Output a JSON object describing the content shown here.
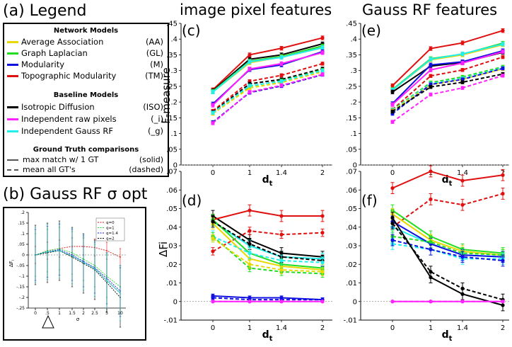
{
  "labels": {
    "legend_title": "(a) Legend",
    "inset_title": "(b) Gauss RF σ opt",
    "col1_title": "image pixel features",
    "col2_title": "Gauss RF features"
  },
  "legend": {
    "network_header": "Network Models",
    "network": [
      {
        "name": "Average Association",
        "abbr": "(AA)",
        "color": "#e8d800"
      },
      {
        "name": "Graph Laplacian",
        "abbr": "(GL)",
        "color": "#22dd22"
      },
      {
        "name": "Modularity",
        "abbr": "(M)",
        "color": "#1010e0"
      },
      {
        "name": "Topographic Modularity",
        "abbr": "(TM)",
        "color": "#e01010"
      }
    ],
    "baseline_header": "Baseline Models",
    "baseline": [
      {
        "name": "Isotropic Diffusion",
        "abbr": "(ISO)",
        "color": "#000000"
      },
      {
        "name": "Independent raw pixels",
        "abbr": "(_i)",
        "color": "#ff22ff"
      },
      {
        "name": "Independent Gauss RF",
        "abbr": "(_g)",
        "color": "#22eeee"
      }
    ],
    "gt_header": "Ground Truth comparisons",
    "gt": [
      {
        "name": "max match w/ 1 GT",
        "abbr": "(solid)",
        "style": "solid"
      },
      {
        "name": "mean all GT's",
        "abbr": "(dashed)",
        "style": "dashed"
      }
    ]
  },
  "chart_data": [
    {
      "id": "c",
      "label": "(c)",
      "type": "line",
      "ylabel": "F-measure",
      "xlabel": "d",
      "xlabel_sub": "t",
      "x": [
        0,
        1,
        1.4,
        2
      ],
      "xticks": [
        "0",
        "1",
        "1.4",
        "2"
      ],
      "ylim": [
        0,
        0.45
      ],
      "yticks": [
        "0",
        ".05",
        ".1",
        ".15",
        ".2",
        ".25",
        ".3",
        ".35",
        ".4",
        ".45"
      ],
      "series": [
        {
          "name": "TM solid",
          "color": "#e01010",
          "dash": false,
          "values": [
            0.239,
            0.35,
            0.371,
            0.404
          ],
          "err": 0.006
        },
        {
          "name": "ISO solid",
          "color": "#000000",
          "dash": false,
          "values": [
            0.236,
            0.336,
            0.35,
            0.385
          ],
          "err": 0.006
        },
        {
          "name": "GL solid",
          "color": "#22dd22",
          "dash": false,
          "values": [
            0.234,
            0.33,
            0.345,
            0.378
          ],
          "err": 0.006
        },
        {
          "name": "AA solid",
          "color": "#e8d800",
          "dash": false,
          "values": [
            0.232,
            0.325,
            0.343,
            0.372
          ],
          "err": 0.006
        },
        {
          "name": "g solid",
          "color": "#22eeee",
          "dash": false,
          "values": [
            0.232,
            0.328,
            0.342,
            0.373
          ],
          "err": 0.006
        },
        {
          "name": "M solid",
          "color": "#1010e0",
          "dash": false,
          "values": [
            0.194,
            0.303,
            0.318,
            0.36
          ],
          "err": 0.006
        },
        {
          "name": "i solid",
          "color": "#ff22ff",
          "dash": false,
          "values": [
            0.19,
            0.305,
            0.322,
            0.357
          ],
          "err": 0.006
        },
        {
          "name": "TM dashed",
          "color": "#e01010",
          "dash": true,
          "values": [
            0.172,
            0.266,
            0.285,
            0.322
          ],
          "err": 0.005
        },
        {
          "name": "ISO dashed",
          "color": "#000000",
          "dash": true,
          "values": [
            0.168,
            0.258,
            0.272,
            0.306
          ],
          "err": 0.005
        },
        {
          "name": "GL dashed",
          "color": "#22dd22",
          "dash": true,
          "values": [
            0.165,
            0.25,
            0.268,
            0.302
          ],
          "err": 0.005
        },
        {
          "name": "AA dashed",
          "color": "#e8d800",
          "dash": true,
          "values": [
            0.163,
            0.245,
            0.262,
            0.296
          ],
          "err": 0.005
        },
        {
          "name": "g dashed",
          "color": "#22eeee",
          "dash": true,
          "values": [
            0.166,
            0.252,
            0.266,
            0.3
          ],
          "err": 0.005
        },
        {
          "name": "M dashed",
          "color": "#1010e0",
          "dash": true,
          "values": [
            0.136,
            0.23,
            0.251,
            0.287
          ],
          "err": 0.005
        },
        {
          "name": "i dashed",
          "color": "#ff22ff",
          "dash": true,
          "values": [
            0.133,
            0.232,
            0.253,
            0.288
          ],
          "err": 0.005
        }
      ]
    },
    {
      "id": "e",
      "label": "(e)",
      "type": "line",
      "ylabel": "",
      "xlabel": "d",
      "xlabel_sub": "t",
      "x": [
        0,
        1,
        1.4,
        2
      ],
      "xticks": [
        "0",
        "1",
        "1.4",
        "2"
      ],
      "ylim": [
        0,
        0.45
      ],
      "yticks": [
        "0",
        ".05",
        ".1",
        ".15",
        ".2",
        ".25",
        ".3",
        ".35",
        ".4",
        ".45"
      ],
      "series": [
        {
          "name": "TM solid",
          "color": "#e01010",
          "dash": false,
          "values": [
            0.252,
            0.37,
            0.388,
            0.427
          ],
          "err": 0.006
        },
        {
          "name": "GL solid",
          "color": "#22dd22",
          "dash": false,
          "values": [
            0.24,
            0.338,
            0.352,
            0.387
          ],
          "err": 0.006
        },
        {
          "name": "AA solid",
          "color": "#e8d800",
          "dash": false,
          "values": [
            0.238,
            0.334,
            0.35,
            0.382
          ],
          "err": 0.006
        },
        {
          "name": "g solid",
          "color": "#22eeee",
          "dash": false,
          "values": [
            0.238,
            0.336,
            0.353,
            0.384
          ],
          "err": 0.006
        },
        {
          "name": "ISO solid",
          "color": "#000000",
          "dash": false,
          "values": [
            0.232,
            0.314,
            0.326,
            0.358
          ],
          "err": 0.006
        },
        {
          "name": "M solid",
          "color": "#1010e0",
          "dash": false,
          "values": [
            0.195,
            0.318,
            0.328,
            0.363
          ],
          "err": 0.006
        },
        {
          "name": "i solid",
          "color": "#ff22ff",
          "dash": false,
          "values": [
            0.192,
            0.302,
            0.324,
            0.36
          ],
          "err": 0.006
        },
        {
          "name": "TM dashed",
          "color": "#e01010",
          "dash": true,
          "values": [
            0.176,
            0.283,
            0.302,
            0.343
          ],
          "err": 0.005
        },
        {
          "name": "GL dashed",
          "color": "#22dd22",
          "dash": true,
          "values": [
            0.175,
            0.262,
            0.28,
            0.312
          ],
          "err": 0.005
        },
        {
          "name": "g dashed",
          "color": "#22eeee",
          "dash": true,
          "values": [
            0.174,
            0.258,
            0.275,
            0.308
          ],
          "err": 0.005
        },
        {
          "name": "AA dashed",
          "color": "#e8d800",
          "dash": true,
          "values": [
            0.172,
            0.255,
            0.272,
            0.305
          ],
          "err": 0.005
        },
        {
          "name": "M dashed",
          "color": "#1010e0",
          "dash": true,
          "values": [
            0.163,
            0.256,
            0.272,
            0.307
          ],
          "err": 0.005
        },
        {
          "name": "ISO dashed",
          "color": "#000000",
          "dash": true,
          "values": [
            0.17,
            0.248,
            0.263,
            0.289
          ],
          "err": 0.005
        },
        {
          "name": "i dashed",
          "color": "#ff22ff",
          "dash": true,
          "values": [
            0.137,
            0.224,
            0.245,
            0.284
          ],
          "err": 0.005
        }
      ]
    },
    {
      "id": "d",
      "label": "(d)",
      "type": "line",
      "ylabel": "ΔFi",
      "xlabel": "d",
      "xlabel_sub": "t",
      "x": [
        0,
        1,
        1.4,
        2
      ],
      "xticks": [
        "0",
        "1",
        "1.4",
        "2"
      ],
      "ylim": [
        -0.01,
        0.07
      ],
      "yticks": [
        "-.01",
        "0",
        ".01",
        ".02",
        ".03",
        ".04",
        ".05",
        ".06",
        ".07"
      ],
      "series": [
        {
          "name": "ISO solid",
          "color": "#000000",
          "dash": false,
          "values": [
            0.046,
            0.033,
            0.026,
            0.024
          ],
          "err": 0.003
        },
        {
          "name": "TM solid",
          "color": "#e01010",
          "dash": false,
          "values": [
            0.044,
            0.049,
            0.046,
            0.046
          ],
          "err": 0.003
        },
        {
          "name": "TM dashed",
          "color": "#e01010",
          "dash": true,
          "values": [
            0.027,
            0.038,
            0.036,
            0.037
          ],
          "err": 0.002
        },
        {
          "name": "g solid",
          "color": "#22eeee",
          "dash": false,
          "values": [
            0.043,
            0.03,
            0.024,
            0.023
          ],
          "err": 0.003
        },
        {
          "name": "AA solid",
          "color": "#e8d800",
          "dash": false,
          "values": [
            0.042,
            0.023,
            0.019,
            0.017
          ],
          "err": 0.003
        },
        {
          "name": "GL solid",
          "color": "#22dd22",
          "dash": false,
          "values": [
            0.044,
            0.026,
            0.02,
            0.018
          ],
          "err": 0.003
        },
        {
          "name": "ISO dashed",
          "color": "#000000",
          "dash": true,
          "values": [
            0.043,
            0.031,
            0.024,
            0.022
          ],
          "err": 0.003
        },
        {
          "name": "g dashed",
          "color": "#22eeee",
          "dash": true,
          "values": [
            0.035,
            0.026,
            0.022,
            0.021
          ],
          "err": 0.003
        },
        {
          "name": "GL dashed",
          "color": "#22dd22",
          "dash": true,
          "values": [
            0.035,
            0.018,
            0.016,
            0.015
          ],
          "err": 0.002
        },
        {
          "name": "AA dashed",
          "color": "#e8d800",
          "dash": true,
          "values": [
            0.034,
            0.02,
            0.017,
            0.016
          ],
          "err": 0.002
        },
        {
          "name": "M solid",
          "color": "#1010e0",
          "dash": false,
          "values": [
            0.003,
            0.002,
            0.002,
            0.001
          ],
          "err": 0.001
        },
        {
          "name": "M dashed",
          "color": "#1010e0",
          "dash": true,
          "values": [
            0.002,
            0.001,
            0.001,
            0.001
          ],
          "err": 0.001
        },
        {
          "name": "i solid",
          "color": "#ff22ff",
          "dash": false,
          "values": [
            0.0,
            0.0,
            0.0,
            0.0
          ],
          "err": 0
        },
        {
          "name": "i dashed",
          "color": "#ff22ff",
          "dash": true,
          "values": [
            0.0,
            0.0,
            0.0,
            0.0
          ],
          "err": 0
        }
      ]
    },
    {
      "id": "f",
      "label": "(f)",
      "type": "line",
      "ylabel": "",
      "xlabel": "d",
      "xlabel_sub": "t",
      "x": [
        0,
        1,
        1.4,
        2
      ],
      "xticks": [
        "0",
        "1",
        "1.4",
        "2"
      ],
      "ylim": [
        -0.01,
        0.07
      ],
      "yticks": [
        "-.01",
        "0",
        ".01",
        ".02",
        ".03",
        ".04",
        ".05",
        ".06",
        ".07"
      ],
      "series": [
        {
          "name": "TM solid",
          "color": "#e01010",
          "dash": false,
          "values": [
            0.061,
            0.07,
            0.065,
            0.068
          ],
          "err": 0.003
        },
        {
          "name": "TM dashed",
          "color": "#e01010",
          "dash": true,
          "values": [
            0.04,
            0.055,
            0.052,
            0.058
          ],
          "err": 0.003
        },
        {
          "name": "GL solid",
          "color": "#22dd22",
          "dash": false,
          "values": [
            0.049,
            0.035,
            0.028,
            0.026
          ],
          "err": 0.003
        },
        {
          "name": "AA solid",
          "color": "#e8d800",
          "dash": false,
          "values": [
            0.047,
            0.033,
            0.027,
            0.025
          ],
          "err": 0.003
        },
        {
          "name": "g solid",
          "color": "#22eeee",
          "dash": false,
          "values": [
            0.04,
            0.031,
            0.025,
            0.024
          ],
          "err": 0.003
        },
        {
          "name": "M solid",
          "color": "#1010e0",
          "dash": false,
          "values": [
            0.043,
            0.031,
            0.025,
            0.024
          ],
          "err": 0.003
        },
        {
          "name": "GL dashed",
          "color": "#22dd22",
          "dash": true,
          "values": [
            0.035,
            0.032,
            0.026,
            0.025
          ],
          "err": 0.003
        },
        {
          "name": "g dashed",
          "color": "#22eeee",
          "dash": true,
          "values": [
            0.031,
            0.028,
            0.023,
            0.023
          ],
          "err": 0.003
        },
        {
          "name": "M dashed",
          "color": "#1010e0",
          "dash": true,
          "values": [
            0.033,
            0.028,
            0.024,
            0.022
          ],
          "err": 0.003
        },
        {
          "name": "ISO solid",
          "color": "#000000",
          "dash": false,
          "values": [
            0.045,
            0.013,
            0.004,
            -0.002
          ],
          "err": 0.003
        },
        {
          "name": "ISO dashed",
          "color": "#000000",
          "dash": true,
          "values": [
            0.042,
            0.016,
            0.007,
            0.001
          ],
          "err": 0.003
        },
        {
          "name": "i solid",
          "color": "#ff22ff",
          "dash": false,
          "values": [
            0.0,
            0.0,
            0.0,
            0.0
          ],
          "err": 0
        },
        {
          "name": "i dashed",
          "color": "#ff22ff",
          "dash": true,
          "values": [
            0.0,
            0.0,
            0.0,
            0.0
          ],
          "err": 0
        }
      ]
    },
    {
      "id": "b",
      "label": "",
      "type": "line",
      "ylabel": "ΔF",
      "ylabel_sub": "i",
      "xlabel": "σ",
      "x": [
        0,
        0.5,
        1,
        1.5,
        2,
        2.5,
        5,
        10
      ],
      "xticks": [
        "0",
        ".5",
        "1",
        "1.5",
        "2",
        "2.5",
        "5",
        "10"
      ],
      "ylim": [
        -0.25,
        0.2
      ],
      "yticks": [
        "-.25",
        "-.2",
        "-.15",
        "-.1",
        "-.05",
        "0",
        ".05",
        ".1",
        ".15",
        ".2"
      ],
      "legend_entries": [
        "q=0",
        "q=1",
        "q=1.4",
        "q=2"
      ],
      "series": [
        {
          "name": "q=0",
          "color": "#e01010",
          "dash": true,
          "values": [
            0.0,
            0.02,
            0.03,
            0.04,
            0.04,
            0.035,
            0.02,
            -0.01
          ],
          "err": 0.04
        },
        {
          "name": "q=1",
          "color": "#22dd22",
          "dash": true,
          "values": [
            0.0,
            0.02,
            0.03,
            0.01,
            -0.02,
            -0.05,
            -0.1,
            -0.15
          ],
          "err": 0.1
        },
        {
          "name": "q=1.4",
          "color": "#1010e0",
          "dash": true,
          "values": [
            0.0,
            0.015,
            0.025,
            0.0,
            -0.03,
            -0.06,
            -0.11,
            -0.17
          ],
          "err": 0.12
        },
        {
          "name": "q=2",
          "color": "#000000",
          "dash": true,
          "values": [
            0.0,
            0.01,
            0.02,
            -0.01,
            -0.04,
            -0.07,
            -0.13,
            -0.2
          ],
          "err": 0.14
        },
        {
          "name": "extra cyan",
          "color": "#22bbbb",
          "dash": false,
          "values": [
            0.0,
            0.015,
            0.02,
            -0.005,
            -0.035,
            -0.065,
            -0.12,
            -0.18
          ],
          "err": 0.13
        }
      ]
    }
  ]
}
